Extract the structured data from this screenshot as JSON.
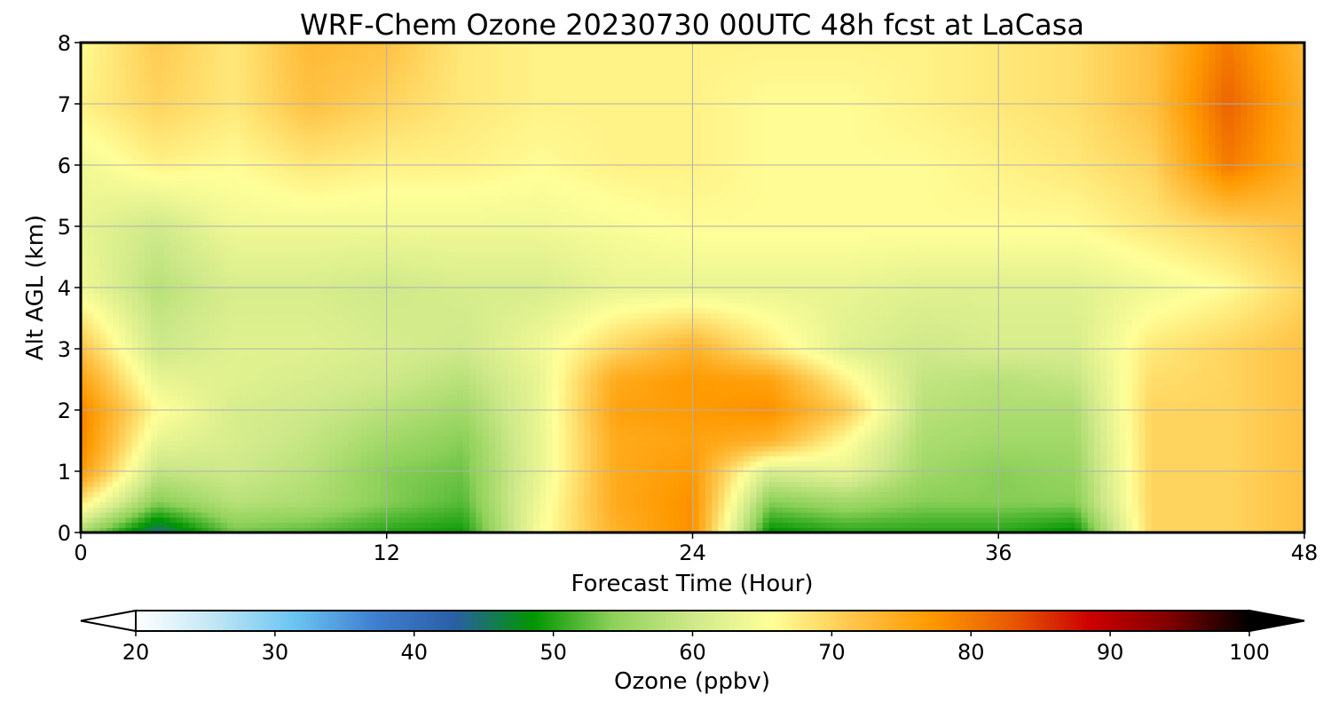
{
  "chart_data": {
    "type": "heatmap",
    "title": "WRF-Chem Ozone  20230730 00UTC 48h fcst at LaCasa",
    "xlabel": "Forecast Time (Hour)",
    "ylabel": "Alt AGL (km)",
    "xlim": [
      0,
      48
    ],
    "ylim": [
      0,
      8
    ],
    "xticks": [
      0,
      12,
      24,
      36,
      48
    ],
    "yticks": [
      0,
      1,
      2,
      3,
      4,
      5,
      6,
      7,
      8
    ],
    "grid": true,
    "x": [
      0,
      3,
      6,
      9,
      12,
      15,
      18,
      21,
      24,
      27,
      30,
      33,
      36,
      39,
      42,
      45,
      48
    ],
    "y": [
      0,
      0.5,
      1,
      1.5,
      2,
      2.5,
      3,
      4,
      5,
      6,
      7,
      8
    ],
    "z": [
      [
        56,
        44,
        53,
        52,
        50,
        49,
        65,
        74,
        78,
        48,
        50,
        50,
        50,
        48,
        70,
        70,
        72
      ],
      [
        68,
        54,
        58,
        57,
        54,
        52,
        64,
        75,
        78,
        54,
        56,
        54,
        54,
        54,
        70,
        70,
        72
      ],
      [
        77,
        59,
        60,
        58,
        54,
        53,
        63,
        75,
        77,
        61,
        63,
        56,
        54,
        55,
        70,
        70,
        72
      ],
      [
        79,
        63,
        61,
        59,
        56,
        54,
        63,
        75,
        76,
        74,
        66,
        57,
        56,
        56,
        70,
        70,
        72
      ],
      [
        79,
        66,
        61,
        60,
        58,
        56,
        63,
        76,
        77,
        78,
        71,
        58,
        57,
        57,
        70,
        70,
        72
      ],
      [
        76,
        63,
        62,
        61,
        60,
        58,
        63,
        75,
        77,
        76,
        67,
        59,
        58,
        59,
        69,
        70,
        72
      ],
      [
        72,
        60,
        62,
        62,
        61,
        60,
        64,
        70,
        74,
        68,
        62,
        60,
        61,
        61,
        68,
        70,
        72
      ],
      [
        64,
        58,
        61,
        61,
        60,
        61,
        61,
        63,
        63,
        63,
        63,
        62,
        62,
        62,
        64,
        66,
        70
      ],
      [
        63,
        60,
        64,
        64,
        64,
        64,
        64,
        65,
        66,
        66,
        66,
        66,
        66,
        66,
        68,
        70,
        72
      ],
      [
        64,
        67,
        66,
        68,
        67,
        67,
        66,
        67,
        67,
        66,
        66,
        66,
        67,
        68,
        70,
        80,
        74
      ],
      [
        67,
        70,
        68,
        72,
        70,
        68,
        67,
        67,
        67,
        66,
        66,
        67,
        68,
        69,
        72,
        82,
        74
      ],
      [
        66,
        71,
        68,
        73,
        72,
        68,
        67,
        67,
        67,
        67,
        67,
        67,
        68,
        69,
        72,
        80,
        73
      ]
    ],
    "colorbar": {
      "label": "Ozone  (ppbv)",
      "min": 20,
      "max": 100,
      "ticks": [
        20,
        30,
        40,
        50,
        60,
        70,
        80,
        90,
        100
      ],
      "extend": "both",
      "colors": [
        "#ffffff",
        "#bfe6f5",
        "#6ac4f2",
        "#3f7fd0",
        "#2a5fa6",
        "#009600",
        "#8ed15a",
        "#cfe98a",
        "#ffff99",
        "#ffc64a",
        "#ff9900",
        "#e85a00",
        "#cc0000",
        "#800000",
        "#000000"
      ]
    }
  }
}
